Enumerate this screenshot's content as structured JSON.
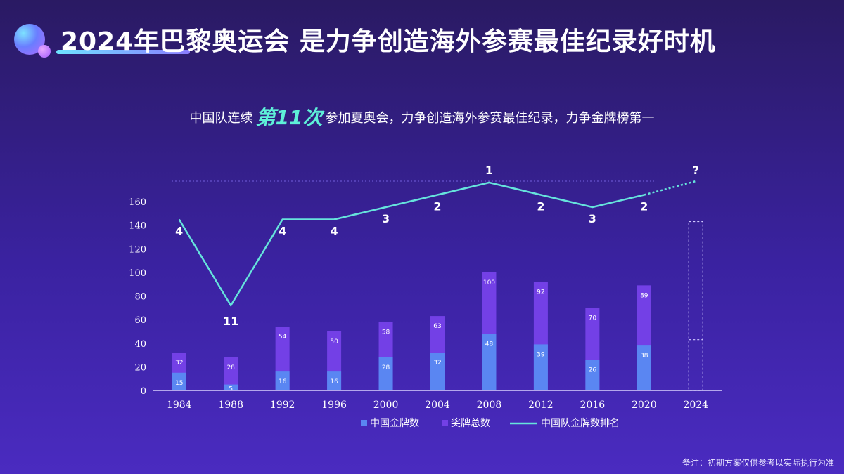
{
  "header": {
    "title": "2024年巴黎奥运会  是力争创造海外参赛最佳纪录好时机"
  },
  "subtitle": {
    "prefix": "中国队连续",
    "highlight": "第11次",
    "suffix": "参加夏奥会，力争创造海外参赛最佳纪录，力争金牌榜第一"
  },
  "note": "备注：初期方案仅供参考以实际执行为准",
  "colors": {
    "gold_bar": "#5a86f2",
    "total_bar": "#7340e6",
    "rank_line": "#66e3dc",
    "placeholder": "#d0c8ff"
  },
  "chart_data": {
    "type": "bar",
    "categories": [
      "1984",
      "1988",
      "1992",
      "1996",
      "2000",
      "2004",
      "2008",
      "2012",
      "2016",
      "2020",
      "2024"
    ],
    "series": [
      {
        "name": "中国金牌数",
        "type": "bar",
        "values": [
          15,
          5,
          16,
          16,
          28,
          32,
          48,
          39,
          26,
          38,
          null
        ]
      },
      {
        "name": "奖牌总数",
        "type": "bar",
        "values": [
          32,
          28,
          54,
          50,
          58,
          63,
          100,
          92,
          70,
          89,
          null
        ]
      },
      {
        "name": "中国队金牌数排名",
        "type": "line",
        "values": [
          4,
          11,
          4,
          4,
          3,
          2,
          1,
          2,
          3,
          2,
          null
        ],
        "labels": [
          "4",
          "11",
          "4",
          "4",
          "3",
          "2",
          "1",
          "2",
          "3",
          "2",
          "?"
        ]
      }
    ],
    "y_ticks": [
      0,
      20,
      40,
      60,
      80,
      100,
      120,
      140,
      160
    ],
    "ylim": [
      0,
      160
    ],
    "legend": [
      "中国金牌数",
      "奖牌总数",
      "中国队金牌数排名"
    ]
  }
}
